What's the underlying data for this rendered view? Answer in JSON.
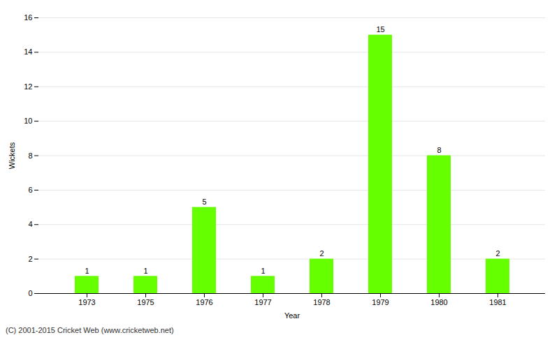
{
  "chart_data": {
    "type": "bar",
    "categories": [
      "1973",
      "1975",
      "1976",
      "1977",
      "1978",
      "1979",
      "1980",
      "1981"
    ],
    "values": [
      1,
      1,
      5,
      1,
      2,
      15,
      8,
      2
    ],
    "color": "#66ff00",
    "xlabel": "Year",
    "ylabel": "Wickets",
    "ylim": [
      0,
      16
    ],
    "yticks": [
      0,
      2,
      4,
      6,
      8,
      10,
      12,
      14,
      16
    ],
    "grid": true,
    "data_labels": true,
    "caption": "(C) 2001-2015 Cricket Web (www.cricketweb.net)"
  }
}
